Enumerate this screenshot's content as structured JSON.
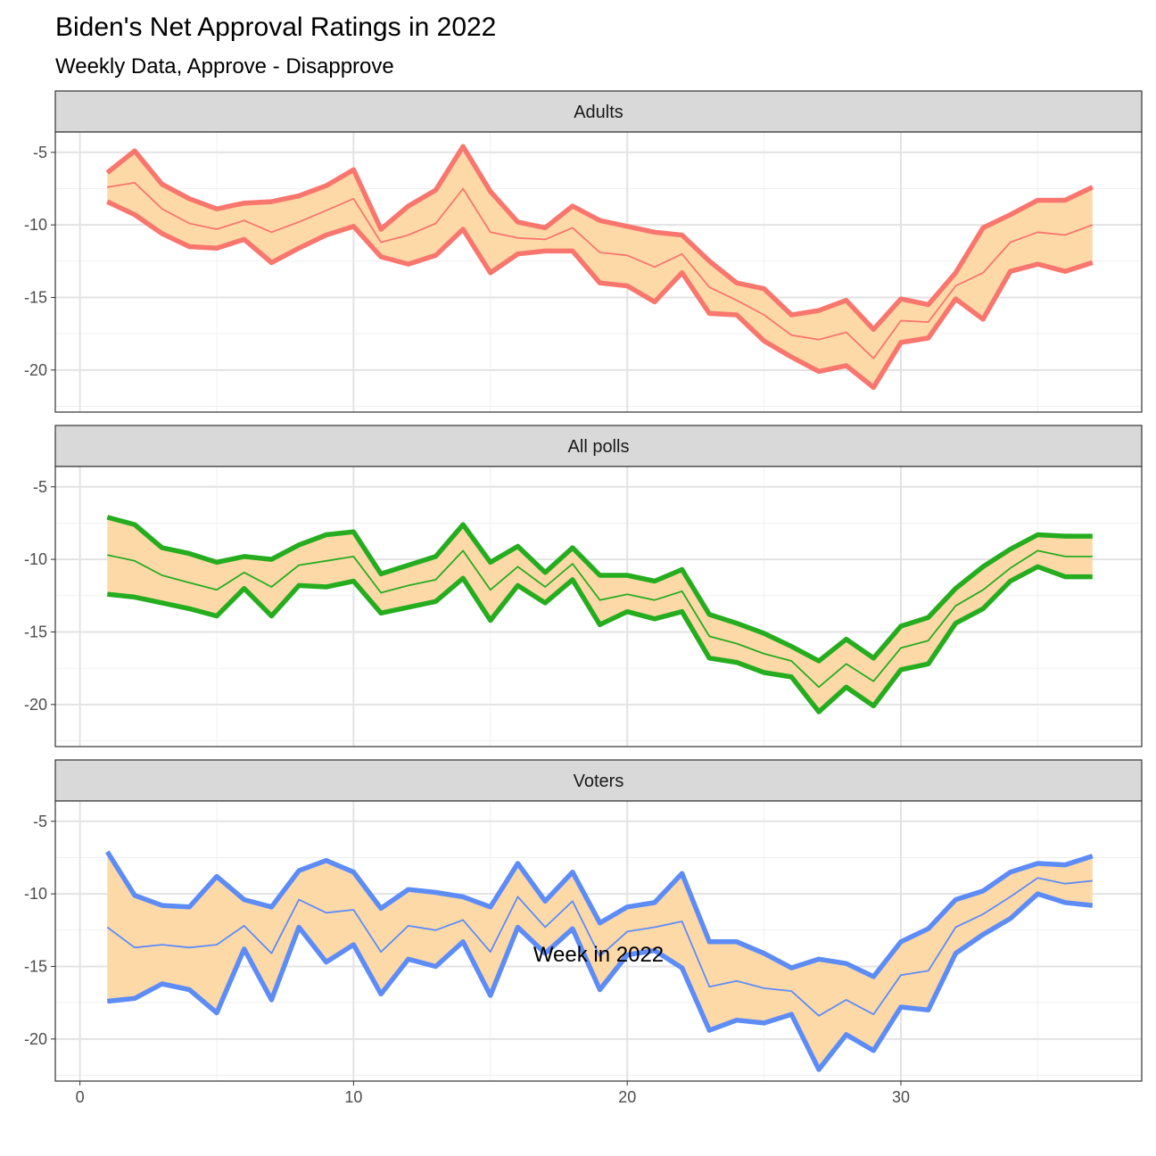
{
  "chart_data": {
    "type": "line",
    "title": "Biden's Net Approval Ratings in 2022",
    "subtitle": "Weekly Data, Approve - Disapprove",
    "xlabel": "Week in 2022",
    "ylabel": "",
    "xlim": [
      -0.9,
      38.8
    ],
    "ylim": [
      -22.9,
      -3.6
    ],
    "x_ticks": [
      0,
      10,
      20,
      30
    ],
    "y_ticks": [
      -5,
      -10,
      -15,
      -20
    ],
    "grid": "on",
    "x": [
      1,
      2,
      3,
      4,
      5,
      6,
      7,
      8,
      9,
      10,
      11,
      12,
      13,
      14,
      15,
      16,
      17,
      18,
      19,
      20,
      21,
      22,
      23,
      24,
      25,
      26,
      27,
      28,
      29,
      30,
      31,
      32,
      33,
      34,
      35,
      36,
      37
    ],
    "panels": [
      {
        "label": "Adults",
        "color": "#f8766d",
        "upper": [
          -6.4,
          -4.9,
          -7.2,
          -8.2,
          -8.9,
          -8.5,
          -8.4,
          -8.0,
          -7.3,
          -6.2,
          -10.3,
          -8.7,
          -7.6,
          -4.6,
          -7.7,
          -9.8,
          -10.2,
          -8.7,
          -9.7,
          -10.1,
          -10.5,
          -10.7,
          -12.5,
          -14.0,
          -14.4,
          -16.2,
          -15.9,
          -15.2,
          -17.2,
          -15.1,
          -15.5,
          -13.3,
          -10.2,
          -9.3,
          -8.3,
          -8.3,
          -7.4
        ],
        "mid": [
          -7.4,
          -7.1,
          -8.9,
          -9.9,
          -10.3,
          -9.7,
          -10.5,
          -9.8,
          -9.0,
          -8.2,
          -11.2,
          -10.7,
          -9.9,
          -7.5,
          -10.5,
          -10.9,
          -11.0,
          -10.2,
          -11.9,
          -12.1,
          -12.9,
          -12.0,
          -14.3,
          -15.2,
          -16.2,
          -17.6,
          -17.9,
          -17.4,
          -19.2,
          -16.6,
          -16.7,
          -14.2,
          -13.3,
          -11.2,
          -10.5,
          -10.7,
          -10.0
        ],
        "lower": [
          -8.4,
          -9.3,
          -10.6,
          -11.5,
          -11.6,
          -11.0,
          -12.6,
          -11.6,
          -10.7,
          -10.1,
          -12.2,
          -12.7,
          -12.1,
          -10.3,
          -13.3,
          -12.0,
          -11.8,
          -11.8,
          -14.0,
          -14.2,
          -15.3,
          -13.3,
          -16.1,
          -16.2,
          -18.0,
          -19.1,
          -20.1,
          -19.7,
          -21.2,
          -18.1,
          -17.8,
          -15.1,
          -16.5,
          -13.2,
          -12.7,
          -13.2,
          -12.6
        ]
      },
      {
        "label": "All polls",
        "color": "#25ad1f",
        "upper": [
          -7.1,
          -7.6,
          -9.2,
          -9.6,
          -10.2,
          -9.8,
          -10.0,
          -9.0,
          -8.3,
          -8.1,
          -11.0,
          -10.4,
          -9.8,
          -7.6,
          -10.2,
          -9.1,
          -10.9,
          -9.2,
          -11.1,
          -11.1,
          -11.5,
          -10.7,
          -13.8,
          -14.4,
          -15.1,
          -16.0,
          -17.0,
          -15.5,
          -16.8,
          -14.6,
          -14.0,
          -12.0,
          -10.5,
          -9.3,
          -8.3,
          -8.4,
          -8.4
        ],
        "mid": [
          -9.7,
          -10.1,
          -11.1,
          -11.6,
          -12.1,
          -10.9,
          -11.9,
          -10.4,
          -10.1,
          -9.8,
          -12.3,
          -11.8,
          -11.4,
          -9.4,
          -12.1,
          -10.5,
          -11.9,
          -10.3,
          -12.8,
          -12.4,
          -12.8,
          -12.2,
          -15.3,
          -15.8,
          -16.5,
          -17.0,
          -18.8,
          -17.2,
          -18.4,
          -16.1,
          -15.6,
          -13.2,
          -12.1,
          -10.6,
          -9.4,
          -9.8,
          -9.8
        ],
        "lower": [
          -12.4,
          -12.6,
          -13.0,
          -13.4,
          -13.9,
          -12.0,
          -13.9,
          -11.8,
          -11.9,
          -11.5,
          -13.7,
          -13.3,
          -12.9,
          -11.3,
          -14.2,
          -11.8,
          -13.0,
          -11.4,
          -14.5,
          -13.6,
          -14.1,
          -13.6,
          -16.8,
          -17.1,
          -17.8,
          -18.1,
          -20.5,
          -18.8,
          -20.1,
          -17.6,
          -17.2,
          -14.4,
          -13.4,
          -11.5,
          -10.5,
          -11.2,
          -11.2
        ]
      },
      {
        "label": "Voters",
        "color": "#5d8cf7",
        "upper": [
          -7.1,
          -10.1,
          -10.8,
          -10.9,
          -8.8,
          -10.4,
          -10.9,
          -8.4,
          -7.7,
          -8.5,
          -11.0,
          -9.7,
          -9.9,
          -10.2,
          -10.9,
          -7.9,
          -10.5,
          -8.5,
          -12.0,
          -10.9,
          -10.6,
          -8.6,
          -13.3,
          -13.3,
          -14.1,
          -15.1,
          -14.5,
          -14.8,
          -15.7,
          -13.3,
          -12.4,
          -10.4,
          -9.8,
          -8.5,
          -7.9,
          -8.0,
          -7.4
        ],
        "mid": [
          -12.3,
          -13.7,
          -13.5,
          -13.7,
          -13.5,
          -12.2,
          -14.1,
          -10.4,
          -11.3,
          -11.1,
          -14.0,
          -12.2,
          -12.5,
          -11.8,
          -14.0,
          -10.2,
          -12.3,
          -10.5,
          -14.3,
          -12.6,
          -12.3,
          -11.9,
          -16.4,
          -16.0,
          -16.5,
          -16.7,
          -18.4,
          -17.3,
          -18.3,
          -15.6,
          -15.3,
          -12.3,
          -11.4,
          -10.2,
          -8.9,
          -9.3,
          -9.1
        ],
        "lower": [
          -17.4,
          -17.2,
          -16.2,
          -16.6,
          -18.2,
          -13.8,
          -17.3,
          -12.3,
          -14.7,
          -13.5,
          -16.9,
          -14.5,
          -15.0,
          -13.3,
          -17.0,
          -12.3,
          -14.1,
          -12.4,
          -16.6,
          -14.2,
          -13.9,
          -15.1,
          -19.4,
          -18.7,
          -18.9,
          -18.3,
          -22.1,
          -19.7,
          -20.8,
          -17.8,
          -18.0,
          -14.1,
          -12.8,
          -11.7,
          -10.0,
          -10.6,
          -10.8
        ]
      }
    ],
    "band_fill": "#fdd9a8"
  }
}
